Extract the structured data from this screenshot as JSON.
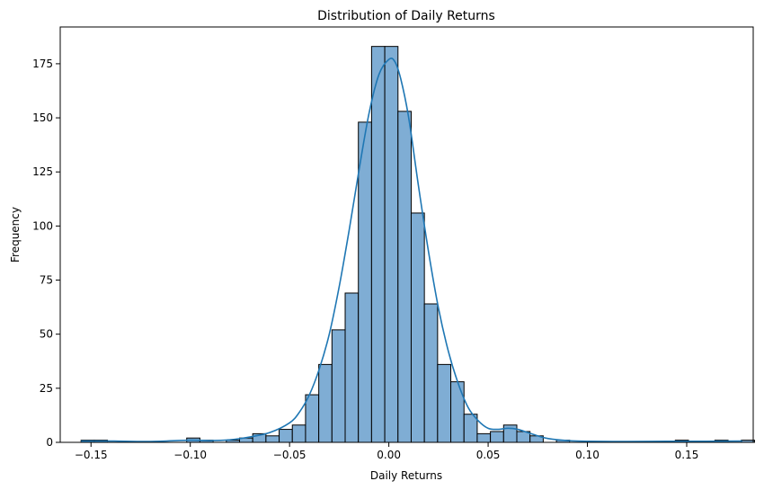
{
  "chart_data": {
    "type": "bar",
    "subtype": "histogram",
    "title": "Distribution of Daily Returns",
    "xlabel": "Daily Returns",
    "ylabel": "Frequency",
    "xlim": [
      -0.1655,
      0.1835
    ],
    "ylim": [
      0,
      192
    ],
    "xticks": [
      -0.15,
      -0.1,
      -0.05,
      0.0,
      0.05,
      0.1,
      0.15
    ],
    "xtick_labels": [
      "−0.15",
      "−0.10",
      "−0.05",
      "0.00",
      "0.05",
      "0.10",
      "0.15"
    ],
    "yticks": [
      0,
      25,
      50,
      75,
      100,
      125,
      150,
      175
    ],
    "ytick_labels": [
      "0",
      "25",
      "50",
      "75",
      "100",
      "125",
      "150",
      "175"
    ],
    "grid": false,
    "bar_color": "#7fadd4",
    "edge_color": "#000000",
    "kde_color": "#1f77b4",
    "bin_start": -0.155,
    "bin_width": 0.00665,
    "counts": [
      1,
      1,
      0,
      0,
      0,
      0,
      0,
      0,
      2,
      1,
      0,
      1,
      2,
      4,
      3,
      6,
      8,
      22,
      36,
      52,
      69,
      148,
      183,
      183,
      153,
      106,
      64,
      36,
      28,
      13,
      4,
      5,
      8,
      5,
      3,
      0,
      1,
      0,
      0,
      0,
      0,
      0,
      0,
      0,
      0,
      1,
      0,
      0,
      1,
      0,
      1
    ],
    "kde": {
      "x": [
        -0.155,
        -0.14,
        -0.12,
        -0.1,
        -0.09,
        -0.08,
        -0.07,
        -0.06,
        -0.05,
        -0.045,
        -0.04,
        -0.035,
        -0.03,
        -0.025,
        -0.02,
        -0.015,
        -0.01,
        -0.005,
        0.0,
        0.003,
        0.006,
        0.01,
        0.015,
        0.02,
        0.025,
        0.03,
        0.035,
        0.04,
        0.045,
        0.05,
        0.055,
        0.06,
        0.065,
        0.07,
        0.075,
        0.08,
        0.09,
        0.1,
        0.12,
        0.14,
        0.16,
        0.178
      ],
      "y": [
        0.6,
        0.6,
        0.4,
        1.0,
        0.8,
        1.2,
        2.5,
        4.5,
        9,
        14,
        22,
        34,
        50,
        72,
        98,
        126,
        152,
        170,
        177,
        176,
        168,
        150,
        118,
        88,
        62,
        42,
        27,
        16,
        10,
        6.5,
        6,
        6.5,
        6,
        4.5,
        3,
        1.8,
        0.8,
        0.5,
        0.4,
        0.5,
        0.5,
        0.6
      ]
    }
  }
}
